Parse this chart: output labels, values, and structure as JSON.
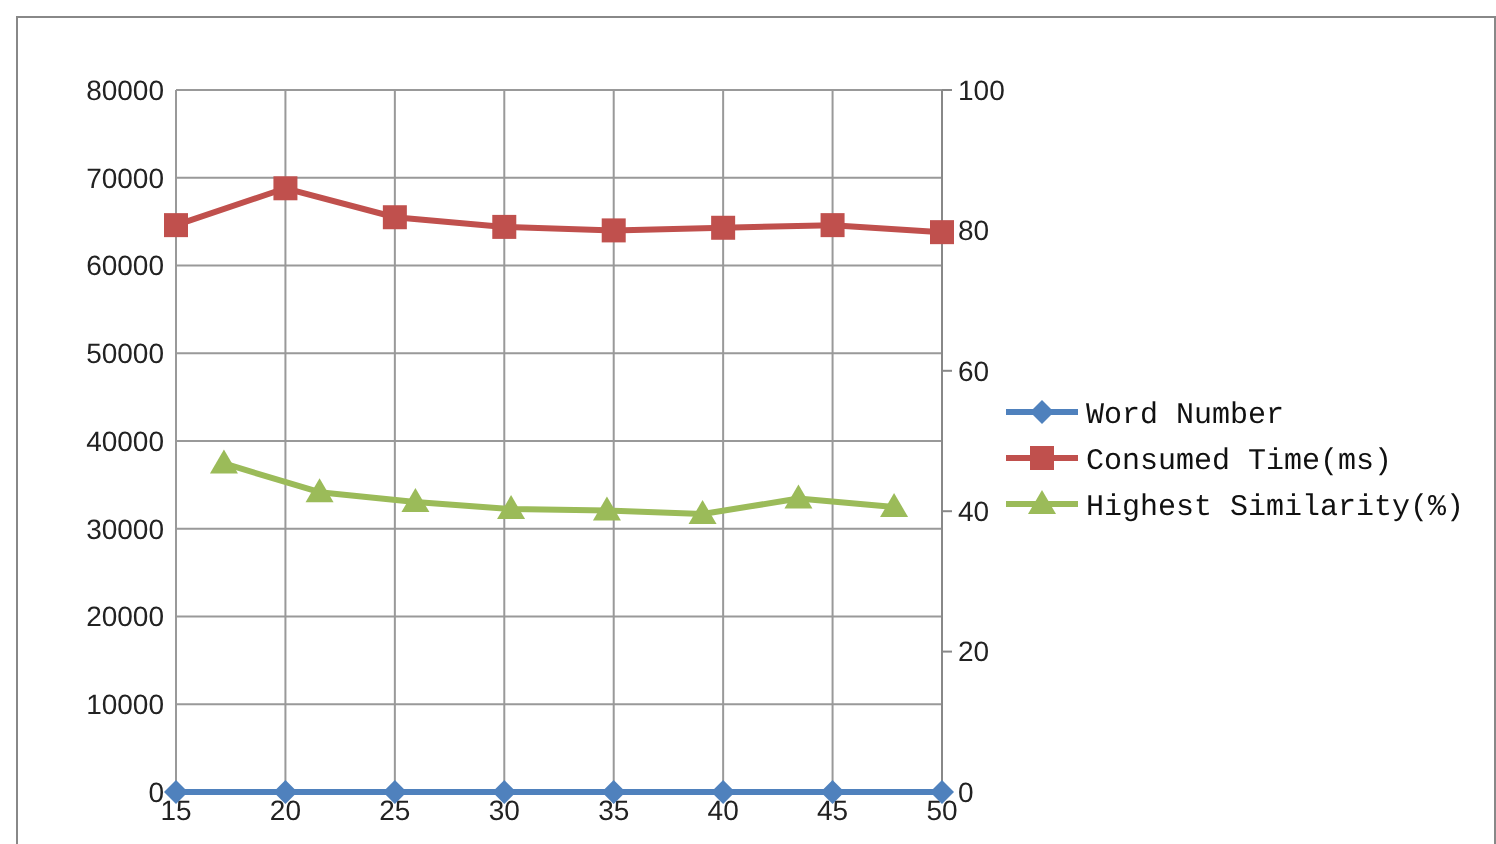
{
  "chart_data": {
    "type": "line",
    "xlim": [
      15,
      50
    ],
    "xticks": [
      15,
      20,
      25,
      30,
      35,
      40,
      45,
      50
    ],
    "ylim": [
      0,
      80000
    ],
    "yticks": [
      0,
      10000,
      20000,
      30000,
      40000,
      50000,
      60000,
      70000,
      80000
    ],
    "y2lim": [
      0,
      100
    ],
    "y2ticks": [
      0,
      20,
      40,
      60,
      80,
      100
    ],
    "grid": true,
    "legend": "right",
    "series": [
      {
        "name": "Word Number",
        "color": "#4f81bd",
        "marker": "diamond",
        "x": [
          15,
          20,
          25,
          30,
          35,
          40,
          45,
          50
        ],
        "values": [
          0,
          0,
          0,
          0,
          0,
          0,
          0,
          0
        ]
      },
      {
        "name": "Consumed Time(ms)",
        "color": "#c0504d",
        "marker": "square",
        "x": [
          15,
          20,
          25,
          30,
          35,
          40,
          45,
          50
        ],
        "values": [
          64600,
          68800,
          65500,
          64400,
          64000,
          64300,
          64600,
          63800
        ]
      },
      {
        "name": "Highest Similarity(%)",
        "color": "#9bbb59",
        "marker": "triangle",
        "axis": "y2",
        "x": [
          17.19,
          21.56,
          25.94,
          30.31,
          34.69,
          39.06,
          43.44,
          47.81
        ],
        "values": [
          46.8,
          42.7,
          41.3,
          40.3,
          40.1,
          39.6,
          41.8,
          40.6
        ]
      }
    ]
  }
}
